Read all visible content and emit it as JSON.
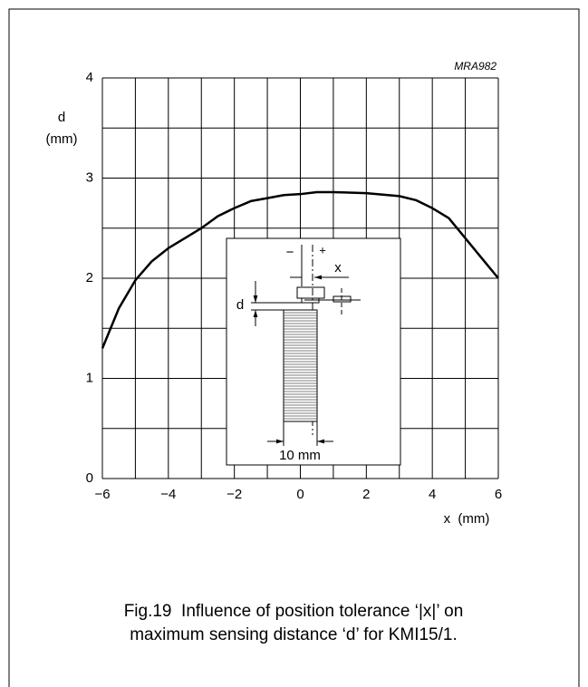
{
  "chart_data": {
    "type": "line",
    "code": "MRA982",
    "y_label": [
      "d",
      "(mm)"
    ],
    "x_label": "x  (mm)",
    "caption": [
      "Fig.19  Influence of position tolerance ‘|x|’ on",
      "maximum sensing distance ‘d’ for KMI15/1."
    ],
    "inset_labels": {
      "minus": "−",
      "plus": "+",
      "x": "x",
      "d": "d",
      "width": "10 mm"
    },
    "x": [
      -6,
      -5.5,
      -5,
      -4.5,
      -4,
      -3.5,
      -3,
      -2.5,
      -2,
      -1.5,
      -1,
      -0.5,
      0,
      0.5,
      1,
      2,
      3,
      3.5,
      4,
      4.5,
      5,
      5.5,
      6
    ],
    "series": [
      {
        "color": "#000000",
        "values": [
          1.3,
          1.7,
          1.98,
          2.17,
          2.3,
          2.4,
          2.5,
          2.62,
          2.7,
          2.77,
          2.8,
          2.83,
          2.84,
          2.86,
          2.86,
          2.85,
          2.82,
          2.78,
          2.7,
          2.6,
          2.4,
          2.2,
          2.0
        ]
      }
    ],
    "xlim": [
      -6,
      6
    ],
    "ylim": [
      0,
      4
    ],
    "xticks": [
      {
        "value": -6,
        "label": "−6"
      },
      {
        "value": -4,
        "label": "−4"
      },
      {
        "value": -2,
        "label": "−2"
      },
      0,
      2,
      4,
      6
    ],
    "yticks": [
      0,
      1,
      2,
      3,
      4
    ],
    "xminorticks": [
      -5,
      -3,
      -1,
      1,
      3,
      5
    ],
    "yminorticks": [
      0.5,
      1.5,
      2.5,
      3.5
    ],
    "grid": true
  }
}
